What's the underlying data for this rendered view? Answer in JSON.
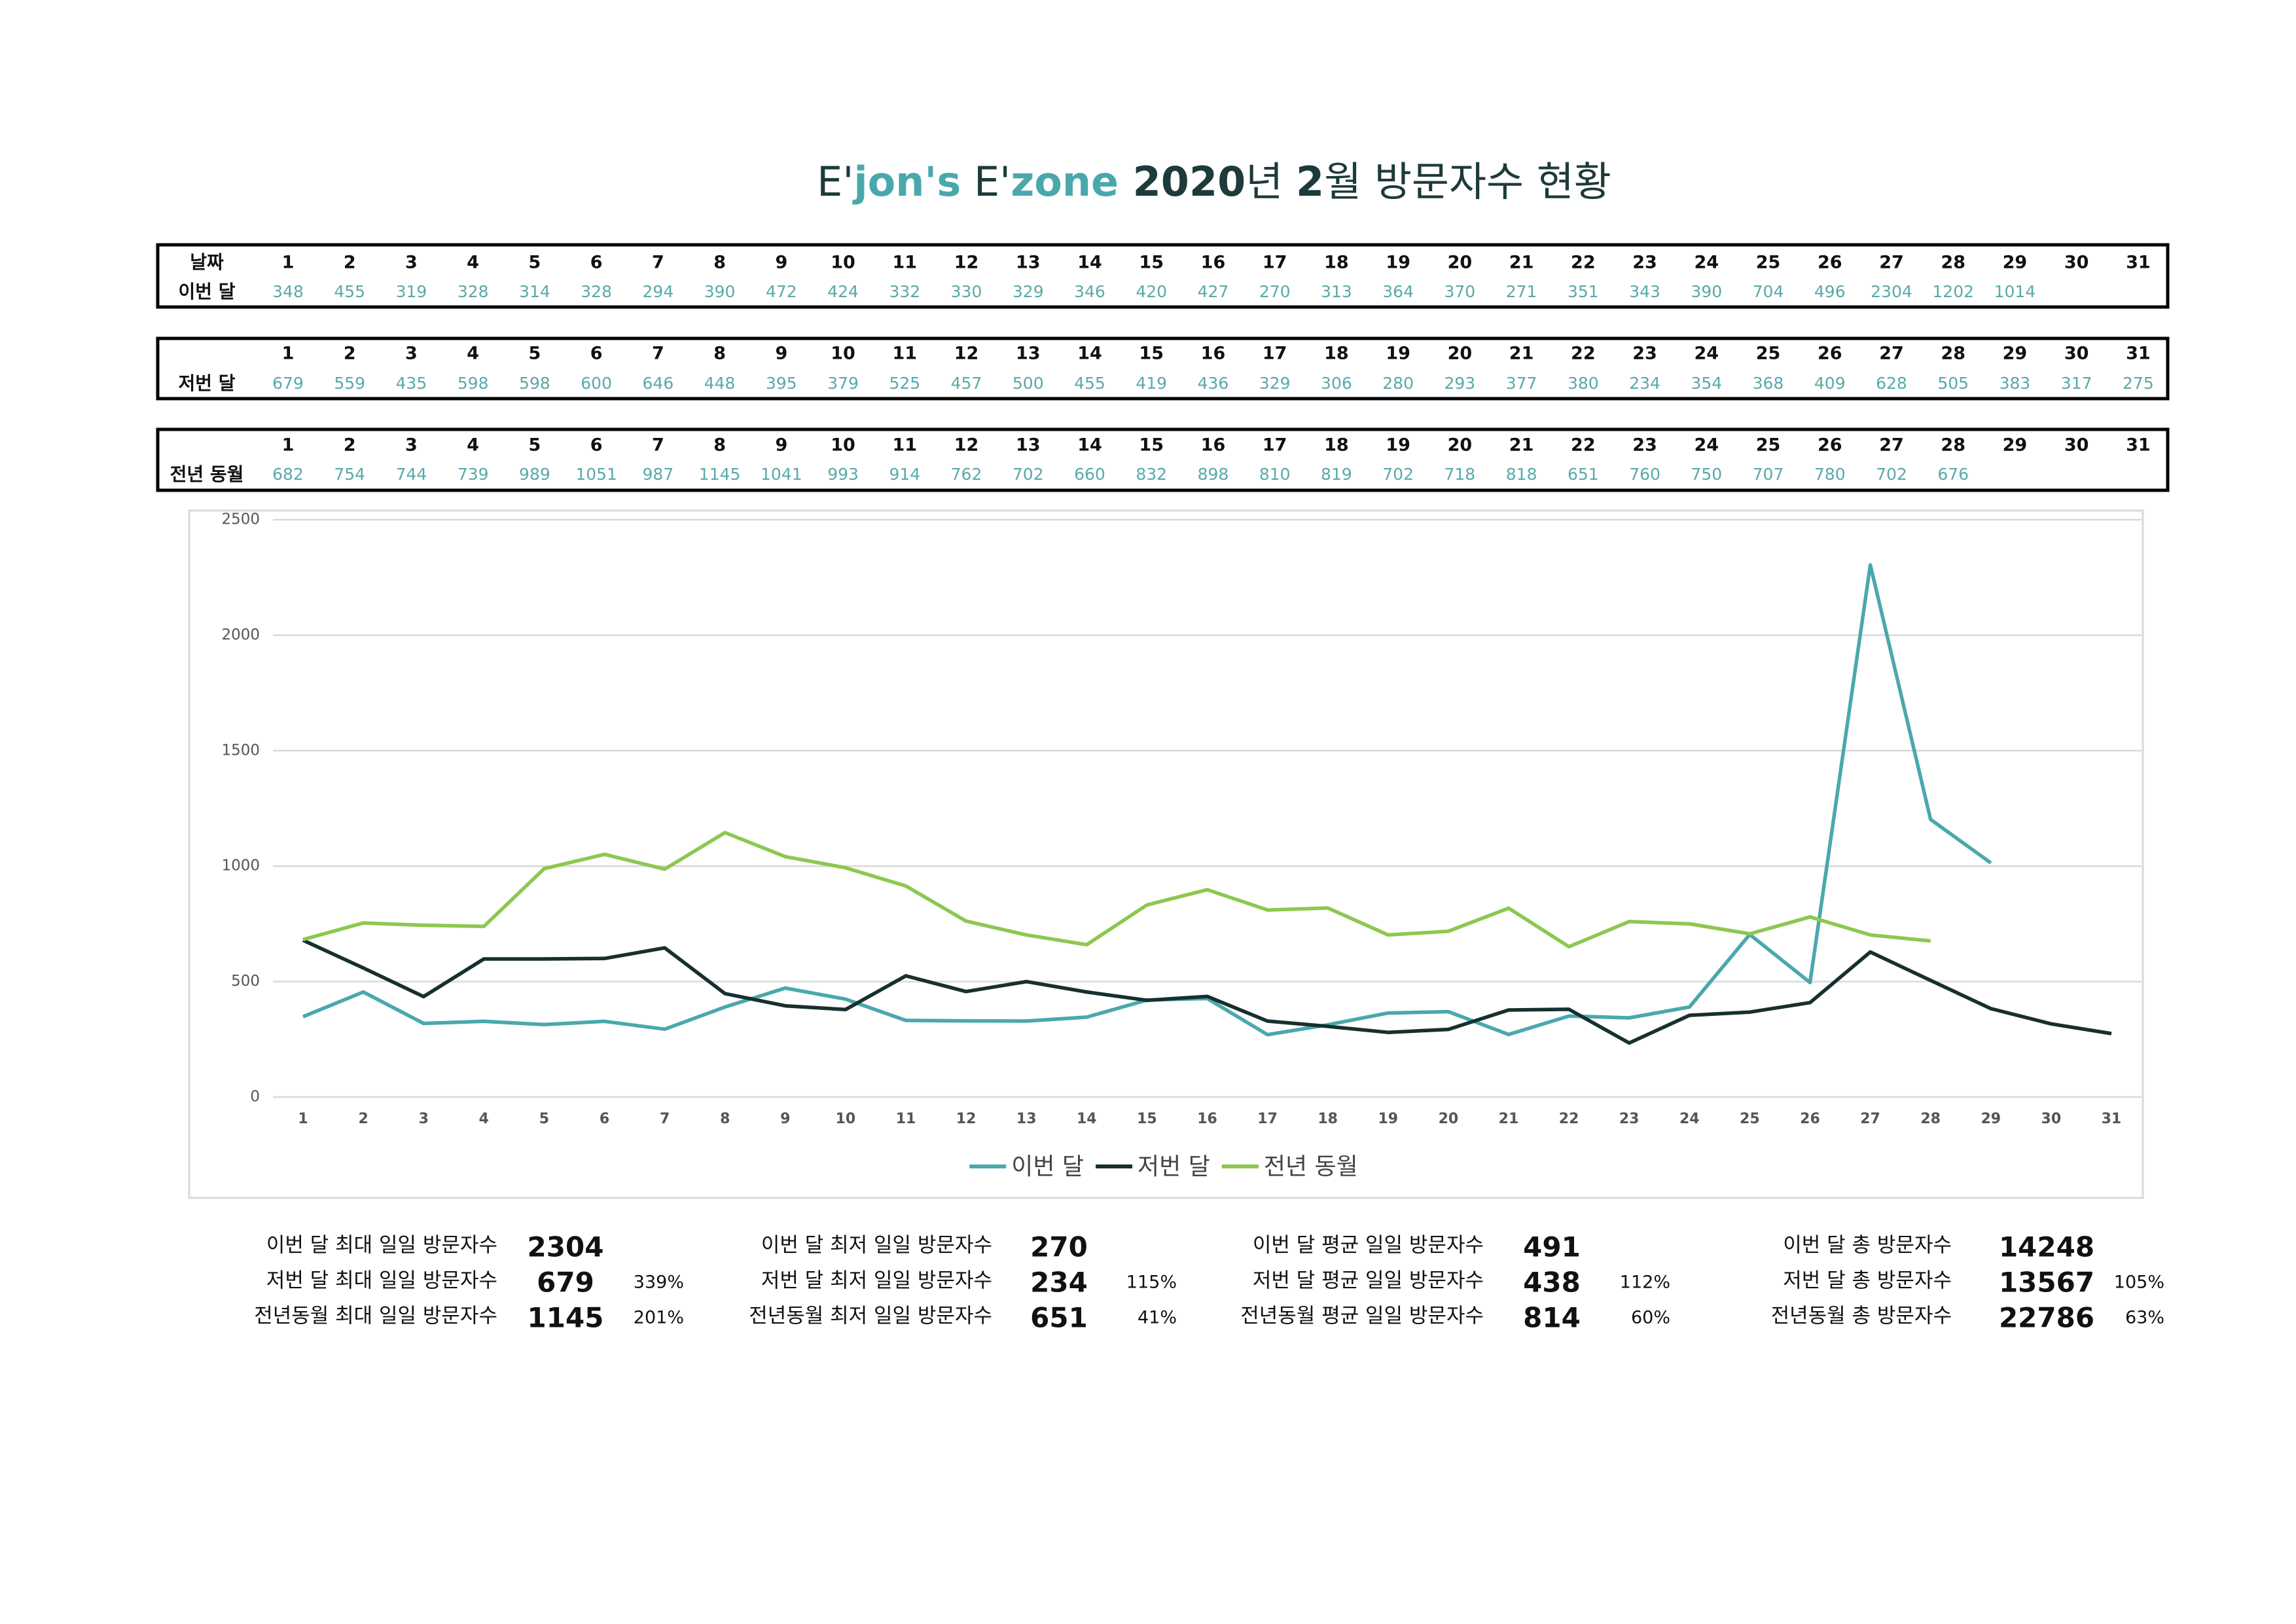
{
  "header": {
    "title_parts": [
      {
        "text": "E'",
        "color": "#1e3a3a",
        "bold": false
      },
      {
        "text": "jon's",
        "color": "#4aa8ad",
        "bold": true
      },
      {
        "text": " E'",
        "color": "#1e3a3a",
        "bold": false
      },
      {
        "text": "zone",
        "color": "#4aa8ad",
        "bold": true
      },
      {
        "text": " 2020",
        "color": "#1e3a3a",
        "bold": true
      },
      {
        "text": "년 ",
        "color": "#1e3a3a",
        "bold": false
      },
      {
        "text": "2",
        "color": "#1e3a3a",
        "bold": true
      },
      {
        "text": "월 방문자수 현황",
        "color": "#1e3a3a",
        "bold": false
      }
    ]
  },
  "tables": [
    {
      "header_label": "날짜",
      "label": "이번 달",
      "days": [
        1,
        2,
        3,
        4,
        5,
        6,
        7,
        8,
        9,
        10,
        11,
        12,
        13,
        14,
        15,
        16,
        17,
        18,
        19,
        20,
        21,
        22,
        23,
        24,
        25,
        26,
        27,
        28,
        29,
        30,
        31
      ]
    },
    {
      "label": "저번 달",
      "days": [
        1,
        2,
        3,
        4,
        5,
        6,
        7,
        8,
        9,
        10,
        11,
        12,
        13,
        14,
        15,
        16,
        17,
        18,
        19,
        20,
        21,
        22,
        23,
        24,
        25,
        26,
        27,
        28,
        29,
        30,
        31
      ]
    },
    {
      "label": "전년 동월",
      "days": [
        1,
        2,
        3,
        4,
        5,
        6,
        7,
        8,
        9,
        10,
        11,
        12,
        13,
        14,
        15,
        16,
        17,
        18,
        19,
        20,
        21,
        22,
        23,
        24,
        25,
        26,
        27,
        28,
        29,
        30,
        31
      ]
    }
  ],
  "chart_data": {
    "type": "line",
    "x": [
      1,
      2,
      3,
      4,
      5,
      6,
      7,
      8,
      9,
      10,
      11,
      12,
      13,
      14,
      15,
      16,
      17,
      18,
      19,
      20,
      21,
      22,
      23,
      24,
      25,
      26,
      27,
      28,
      29,
      30,
      31
    ],
    "xlim": [
      0.5,
      31.5
    ],
    "ylim": [
      0,
      2500
    ],
    "yticks": [
      0,
      500,
      1000,
      1500,
      2000,
      2500
    ],
    "grid": true,
    "legend": "bottom",
    "series": [
      {
        "name": "이번 달",
        "color": "#4aa8ad",
        "values": [
          348,
          455,
          319,
          328,
          314,
          328,
          294,
          390,
          472,
          424,
          332,
          330,
          329,
          346,
          420,
          427,
          270,
          313,
          364,
          370,
          271,
          351,
          343,
          390,
          704,
          496,
          2304,
          1202,
          1014,
          null,
          null
        ]
      },
      {
        "name": "저번 달",
        "color": "#17302f",
        "values": [
          679,
          559,
          435,
          598,
          598,
          600,
          646,
          448,
          395,
          379,
          525,
          457,
          500,
          455,
          419,
          436,
          329,
          306,
          280,
          293,
          377,
          380,
          234,
          354,
          368,
          409,
          628,
          505,
          383,
          317,
          275
        ]
      },
      {
        "name": "전년 동월",
        "color": "#8cc850",
        "values": [
          682,
          754,
          744,
          739,
          989,
          1051,
          987,
          1145,
          1041,
          993,
          914,
          762,
          702,
          660,
          832,
          898,
          810,
          819,
          702,
          718,
          818,
          651,
          760,
          750,
          707,
          780,
          702,
          676,
          null,
          null,
          null
        ]
      }
    ]
  },
  "stats": [
    {
      "rows": [
        {
          "label": "이번 달 최대 일일 방문자수",
          "value": 2304
        },
        {
          "label": "저번 달 최대 일일 방문자수",
          "value": 679,
          "ratio": "339%"
        },
        {
          "label": "전년동월 최대 일일 방문자수",
          "value": 1145,
          "ratio": "201%"
        }
      ]
    },
    {
      "rows": [
        {
          "label": "이번 달 최저 일일 방문자수",
          "value": 270
        },
        {
          "label": "저번 달 최저 일일 방문자수",
          "value": 234,
          "ratio": "115%"
        },
        {
          "label": "전년동월 최저 일일 방문자수",
          "value": 651,
          "ratio": "41%"
        }
      ]
    },
    {
      "rows": [
        {
          "label": "이번 달 평균 일일 방문자수",
          "value": 491
        },
        {
          "label": "저번 달 평균 일일 방문자수",
          "value": 438,
          "ratio": "112%"
        },
        {
          "label": "전년동월 평균 일일 방문자수",
          "value": 814,
          "ratio": "60%"
        }
      ]
    },
    {
      "rows": [
        {
          "label": "이번 달 총 방문자수",
          "value": 14248
        },
        {
          "label": "저번 달 총 방문자수",
          "value": 13567,
          "ratio": "105%"
        },
        {
          "label": "전년동월 총 방문자수",
          "value": 22786,
          "ratio": "63%"
        }
      ]
    }
  ]
}
